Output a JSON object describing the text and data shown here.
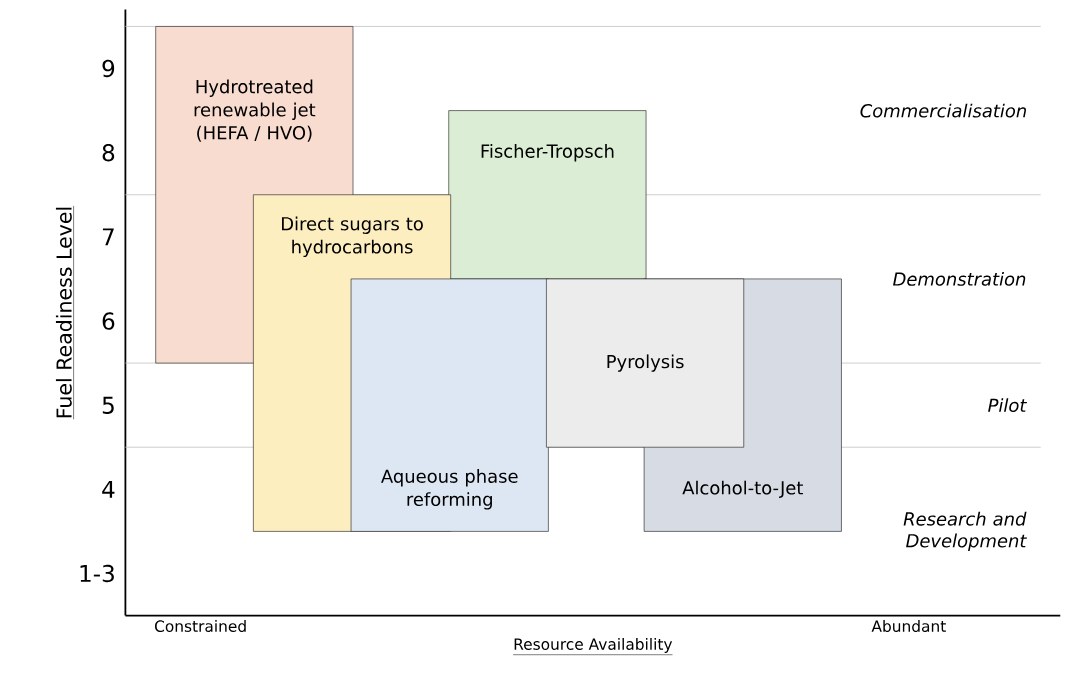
{
  "chart_data": {
    "type": "bar",
    "xlabel": "Resource Availability",
    "ylabel": "Fuel Readiness Level",
    "categories": [
      "Hydrotreated renewable jet (HEFA / HVO)",
      "Direct sugars to hydrocarbons",
      "Aqueous phase reforming",
      "Fischer-Tropsch",
      "Pyrolysis",
      "Alcohol-to-Jet"
    ],
    "base": [
      5.5,
      3.5,
      3.5,
      6.5,
      4.5,
      3.5
    ],
    "values": [
      4,
      4,
      3,
      2,
      2,
      3
    ],
    "colors": [
      "#f8dccf",
      "#fdeec0",
      "#dde7f3",
      "#dcedd5",
      "#ececec",
      "#d6dbe4"
    ],
    "ylim": [
      2.5,
      9.7
    ],
    "yticks": [
      {
        "value": 3,
        "label": "1-3"
      },
      4,
      5,
      6,
      7,
      8,
      9
    ],
    "ref_lines": [
      {
        "axis": "y",
        "value": 9.5,
        "color": "#c8c8c8"
      },
      {
        "axis": "y",
        "value": 7.5,
        "color": "#c8c8c8"
      },
      {
        "axis": "y",
        "value": 5.5,
        "color": "#c8c8c8"
      },
      {
        "axis": "y",
        "value": 4.5,
        "color": "#c8c8c8"
      }
    ],
    "annotations": [
      "Commercialisation",
      "Demonstration",
      "Pilot",
      "Research and Development",
      "Constrained",
      "Abundant"
    ]
  }
}
